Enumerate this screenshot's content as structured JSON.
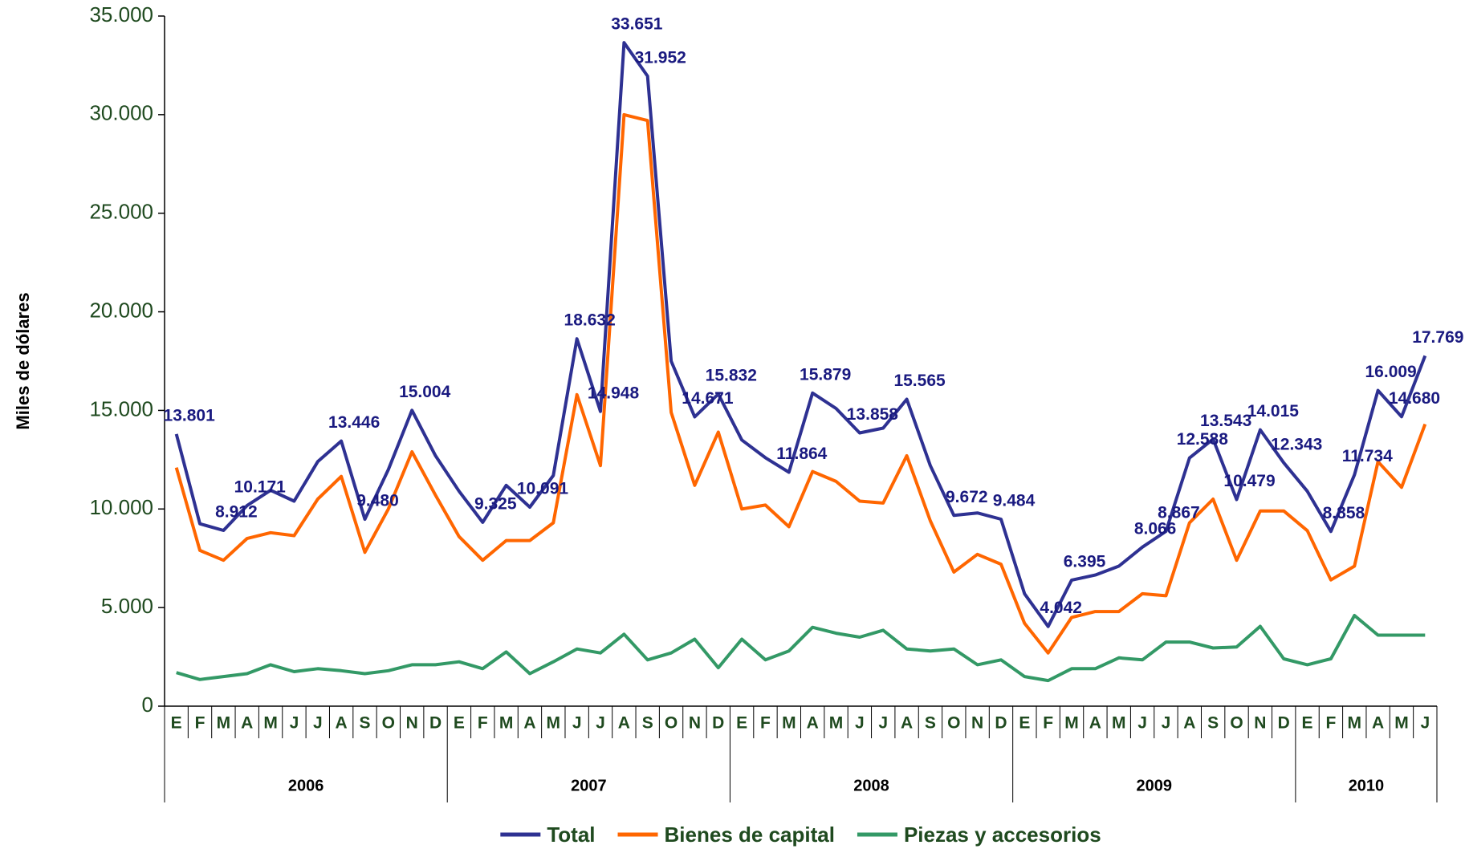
{
  "chart_data": {
    "type": "line",
    "y_axis_label": "Miles de dólares",
    "categories": [
      "E",
      "F",
      "M",
      "A",
      "M",
      "J",
      "J",
      "A",
      "S",
      "O",
      "N",
      "D",
      "E",
      "F",
      "M",
      "A",
      "M",
      "J",
      "J",
      "A",
      "S",
      "O",
      "N",
      "D",
      "E",
      "F",
      "M",
      "A",
      "M",
      "J",
      "J",
      "A",
      "S",
      "O",
      "N",
      "D",
      "E",
      "F",
      "M",
      "A",
      "M",
      "J",
      "J",
      "A",
      "S",
      "O",
      "N",
      "D",
      "E",
      "F",
      "M",
      "A",
      "M",
      "J"
    ],
    "years": [
      "2006",
      "2007",
      "2008",
      "2009",
      "2010"
    ],
    "ylim": [
      0,
      35000
    ],
    "yticks": [
      0,
      {
        "value": 5000,
        "label": "5.000"
      },
      {
        "value": 10000,
        "label": "10.000"
      },
      {
        "value": 15000,
        "label": "15.000"
      },
      {
        "value": 20000,
        "label": "20.000"
      },
      {
        "value": 25000,
        "label": "25.000"
      },
      {
        "value": 30000,
        "label": "30.000"
      },
      {
        "value": 35000,
        "label": "35.000"
      }
    ],
    "series": [
      {
        "name": "Total",
        "color": "#2e3192",
        "values": [
          13801,
          9250,
          8912,
          10171,
          10950,
          10400,
          12400,
          13446,
          9480,
          12000,
          15004,
          12700,
          10900,
          9325,
          11200,
          10091,
          11700,
          18632,
          14948,
          33651,
          31952,
          17500,
          14671,
          15832,
          13500,
          12600,
          11864,
          15879,
          15100,
          13858,
          14100,
          15565,
          12200,
          9672,
          9800,
          9484,
          5700,
          4042,
          6395,
          6650,
          7100,
          8066,
          8867,
          12588,
          13543,
          10479,
          14015,
          12343,
          10900,
          8858,
          11734,
          16009,
          14680,
          17769
        ],
        "value_labels": [
          "13.801",
          null,
          "8.912",
          "10.171",
          null,
          null,
          null,
          "13.446",
          "9.480",
          null,
          "15.004",
          null,
          null,
          "9.325",
          null,
          "10.091",
          null,
          "18.632",
          "14.948",
          "33.651",
          "31.952",
          null,
          "14.671",
          "15.832",
          null,
          null,
          "11.864",
          "15.879",
          null,
          "13.858",
          null,
          "15.565",
          null,
          "9.672",
          null,
          "9.484",
          null,
          "4.042",
          "6.395",
          null,
          null,
          "8.066",
          "8.867",
          "12.588",
          "13.543",
          "10.479",
          "14.015",
          "12.343",
          null,
          "8.858",
          "11.734",
          "16.009",
          "14.680",
          "17.769"
        ]
      },
      {
        "name": "Bienes de capital",
        "color": "#ff6600",
        "values": [
          12100,
          7900,
          7400,
          8500,
          8800,
          8650,
          10500,
          11650,
          7800,
          10000,
          12900,
          10700,
          8600,
          7400,
          8400,
          8400,
          9300,
          15800,
          12200,
          30000,
          29700,
          14900,
          11200,
          13900,
          10000,
          10200,
          9100,
          11900,
          11400,
          10400,
          10300,
          12700,
          9400,
          6800,
          7700,
          7200,
          4200,
          2700,
          4500,
          4800,
          4800,
          5700,
          5600,
          9300,
          10500,
          7400,
          9900,
          9900,
          8900,
          6400,
          7100,
          12400,
          11100,
          14300
        ]
      },
      {
        "name": "Piezas y accesorios",
        "color": "#339966",
        "values": [
          1700,
          1350,
          1500,
          1650,
          2100,
          1750,
          1900,
          1800,
          1650,
          1800,
          2100,
          2100,
          2250,
          1900,
          2750,
          1650,
          2250,
          2900,
          2700,
          3650,
          2350,
          2700,
          3400,
          1950,
          3400,
          2350,
          2800,
          4000,
          3700,
          3500,
          3850,
          2900,
          2800,
          2900,
          2100,
          2350,
          1500,
          1300,
          1900,
          1900,
          2450,
          2350,
          3250,
          3250,
          2950,
          3000,
          4050,
          2400,
          2100,
          2400,
          4600,
          3600,
          3600,
          3600
        ]
      }
    ]
  }
}
